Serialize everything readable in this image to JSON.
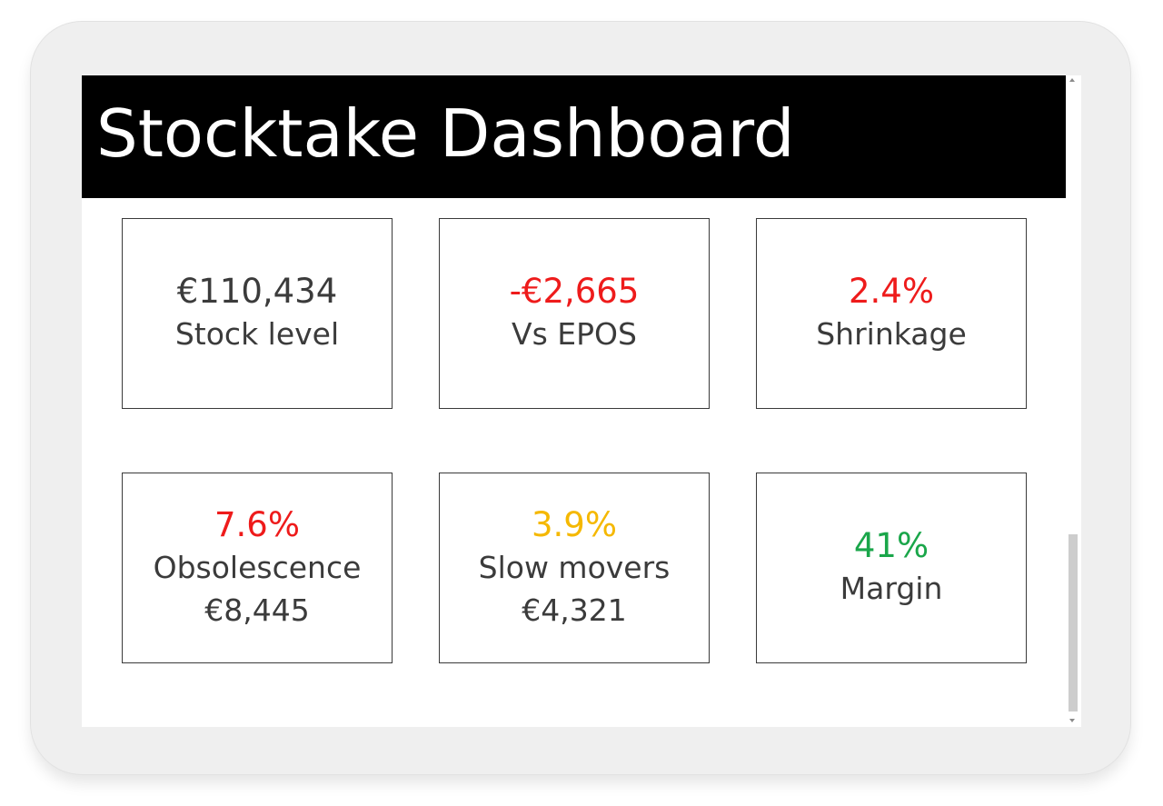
{
  "header": {
    "title": "Stocktake Dashboard"
  },
  "colors": {
    "neutral": "#3b3b3b",
    "negative": "#ee1b1b",
    "warning": "#f5b800",
    "positive": "#1aa64a",
    "header_bg": "#000000"
  },
  "cards": [
    {
      "value": "€110,434",
      "label": "Stock level",
      "status": "neutral"
    },
    {
      "value": "-€2,665",
      "label": "Vs EPOS",
      "status": "negative"
    },
    {
      "value": "2.4%",
      "label": "Shrinkage",
      "status": "negative"
    },
    {
      "value": "7.6%",
      "label": "Obsolescence",
      "sub": "€8,445",
      "status": "negative"
    },
    {
      "value": "3.9%",
      "label": "Slow movers",
      "sub": "€4,321",
      "status": "warning"
    },
    {
      "value": "41%",
      "label": "Margin",
      "status": "positive"
    }
  ]
}
